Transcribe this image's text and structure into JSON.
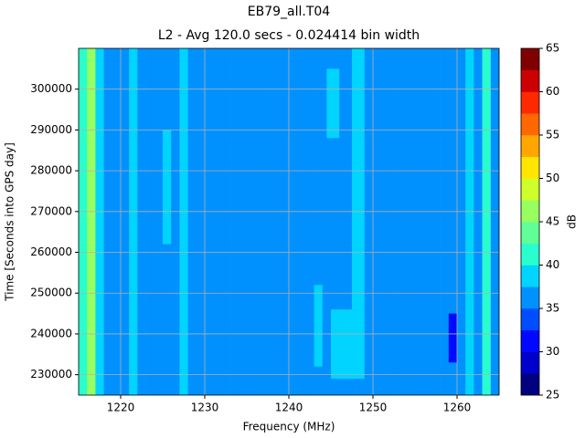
{
  "chart_data": {
    "type": "heatmap",
    "title": "EB79_all.T04",
    "subtitle": "L2 - Avg 120.0 secs - 0.024414 bin width",
    "x_label": "Frequency (MHz)",
    "y_label": "Time [Seconds into GPS day]",
    "colorbar_label": "dB",
    "colormap": "jet",
    "grid": true,
    "xlim": [
      1215,
      1265
    ],
    "ylim": [
      225000,
      310000
    ],
    "xticks": [
      1220,
      1230,
      1240,
      1250,
      1260
    ],
    "yticks": [
      230000,
      240000,
      250000,
      260000,
      270000,
      280000,
      290000,
      300000
    ],
    "clevels": [
      25,
      27.5,
      30,
      32.5,
      35,
      37.5,
      40,
      42.5,
      45,
      47.5,
      50,
      52.5,
      55,
      57.5,
      60,
      62.5,
      65
    ],
    "cticks": [
      25,
      30,
      35,
      40,
      45,
      50,
      55,
      60,
      65
    ],
    "x_edges": [
      1215,
      1216,
      1217,
      1218,
      1219,
      1220,
      1221,
      1222,
      1223,
      1224,
      1225,
      1226,
      1227,
      1228,
      1229,
      1230,
      1231,
      1232,
      1233,
      1234,
      1235,
      1236,
      1237,
      1238,
      1239,
      1240,
      1241,
      1242,
      1243,
      1244,
      1245,
      1246,
      1247,
      1248,
      1249,
      1250,
      1251,
      1252,
      1253,
      1254,
      1255,
      1256,
      1257,
      1258,
      1259,
      1260,
      1261,
      1262,
      1263,
      1264,
      1265
    ],
    "values": [
      42,
      45,
      38,
      36,
      36,
      36,
      38,
      36,
      36,
      36,
      36,
      36,
      38,
      36,
      36,
      36,
      36,
      36,
      36,
      36,
      36,
      36,
      36,
      36,
      36,
      36,
      36,
      36,
      36,
      36,
      36,
      36,
      36,
      36,
      36,
      36,
      36,
      36,
      36,
      36,
      36,
      36,
      36,
      36,
      36,
      37,
      38,
      36,
      42,
      36
    ],
    "patches": [
      {
        "x": [
          1243,
          1244
        ],
        "y": [
          232000,
          252000
        ],
        "value": 38
      },
      {
        "x": [
          1245,
          1249
        ],
        "y": [
          229000,
          246000
        ],
        "value": 38
      },
      {
        "x": [
          1247.5,
          1249
        ],
        "y": [
          246000,
          310000
        ],
        "value": 38
      },
      {
        "x": [
          1244.5,
          1246
        ],
        "y": [
          288000,
          305000
        ],
        "value": 38
      },
      {
        "x": [
          1259,
          1260
        ],
        "y": [
          233000,
          245000
        ],
        "value": 31
      },
      {
        "x": [
          1225,
          1226
        ],
        "y": [
          262000,
          290000
        ],
        "value": 38
      }
    ]
  }
}
